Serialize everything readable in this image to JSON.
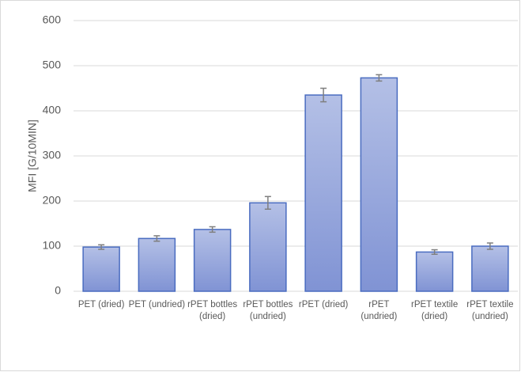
{
  "chart_data": {
    "type": "bar",
    "y_label": "MFI [G/10MIN]",
    "categories": [
      "PET (dried)",
      "PET (undried)",
      "rPET bottles (dried)",
      "rPET bottles (undried)",
      "rPET (dried)",
      "rPET (undried)",
      "rPET textile (dried)",
      "rPET textile (undried)"
    ],
    "values": [
      98,
      117,
      137,
      196,
      435,
      473,
      87,
      100
    ],
    "errors": [
      5,
      6,
      6,
      14,
      15,
      7,
      5,
      7
    ],
    "color": "#8fa2dc",
    "ylim": [
      0,
      600
    ],
    "yticks": [
      0,
      100,
      200,
      300,
      400,
      500,
      600
    ],
    "grid": true
  }
}
